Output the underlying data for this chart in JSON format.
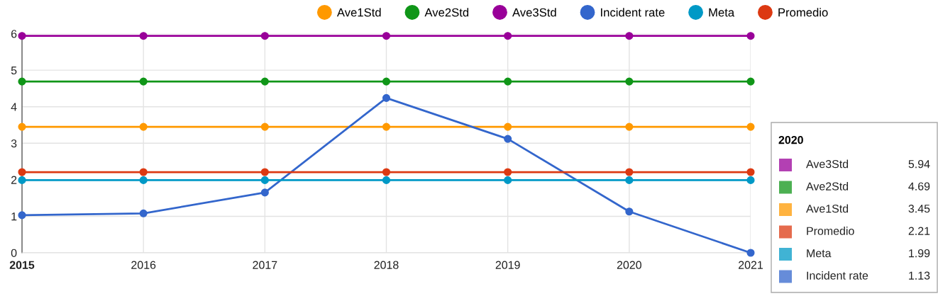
{
  "chart_data": {
    "type": "line",
    "categories": [
      "2015",
      "2016",
      "2017",
      "2018",
      "2019",
      "2020",
      "2021"
    ],
    "series": [
      {
        "name": "Ave1Std",
        "color": "#ff9900",
        "values": [
          3.45,
          3.45,
          3.45,
          3.45,
          3.45,
          3.45,
          3.45
        ]
      },
      {
        "name": "Ave2Std",
        "color": "#109618",
        "values": [
          4.69,
          4.69,
          4.69,
          4.69,
          4.69,
          4.69,
          4.69
        ]
      },
      {
        "name": "Ave3Std",
        "color": "#990099",
        "values": [
          5.94,
          5.94,
          5.94,
          5.94,
          5.94,
          5.94,
          5.94
        ]
      },
      {
        "name": "Incident rate",
        "color": "#3366cc",
        "values": [
          1.03,
          1.08,
          1.65,
          4.24,
          3.12,
          1.13,
          0
        ]
      },
      {
        "name": "Meta",
        "color": "#0099c6",
        "values": [
          1.99,
          1.99,
          1.99,
          1.99,
          1.99,
          1.99,
          1.99
        ]
      },
      {
        "name": "Promedio",
        "color": "#dc3912",
        "values": [
          2.21,
          2.21,
          2.21,
          2.21,
          2.21,
          2.21,
          2.21
        ]
      }
    ],
    "ylim": [
      0,
      6
    ],
    "yticks": [
      0,
      1,
      2,
      3,
      4,
      5,
      6
    ],
    "grid": true,
    "legend": "top",
    "marker": "circle",
    "line_style": "solid",
    "annotations": [
      "2020",
      "Ave3Std",
      "5.94",
      "Ave2Std",
      "4.69",
      "Ave1Std",
      "3.45",
      "Promedio",
      "2.21",
      "Meta",
      "1.99",
      "Incident rate",
      "1.13"
    ]
  }
}
